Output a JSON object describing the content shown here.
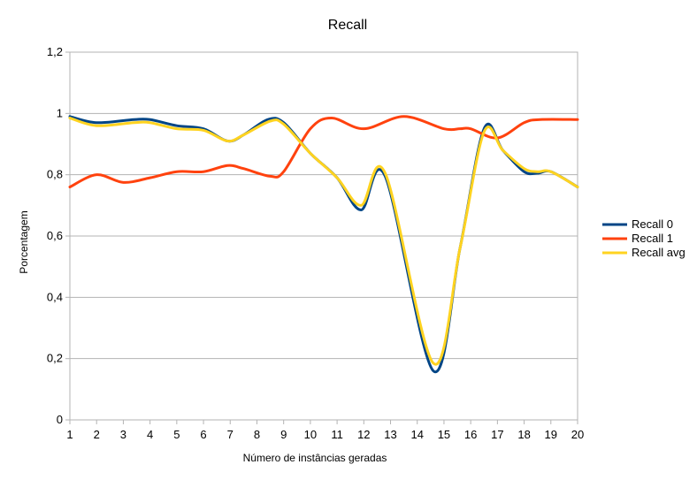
{
  "chart_data": {
    "type": "line",
    "title": "Recall",
    "xlabel": "Número de instâncias geradas",
    "ylabel": "Porcentagem",
    "x": [
      1,
      2,
      3,
      4,
      5,
      6,
      7,
      8,
      9,
      10,
      11,
      12,
      13,
      14,
      15,
      16,
      17,
      18,
      19,
      20
    ],
    "x_tick_labels": [
      "1",
      "2",
      "3",
      "4",
      "5",
      "6",
      "7",
      "8",
      "9",
      "10",
      "11",
      "12",
      "13",
      "14",
      "15",
      "16",
      "17",
      "18",
      "19",
      "20"
    ],
    "ylim": [
      0,
      1.2
    ],
    "y_ticks": [
      0,
      0.2,
      0.4,
      0.6,
      0.8,
      1.0,
      1.2
    ],
    "y_tick_labels": [
      "0",
      "0,2",
      "0,4",
      "0,6",
      "0,8",
      "1",
      "1,2"
    ],
    "grid": "horizontal",
    "legend": "right",
    "series": [
      {
        "name": "Recall 0",
        "color": "#004586",
        "points": [
          [
            1,
            0.99
          ],
          [
            2,
            0.97
          ],
          [
            3.4,
            0.98
          ],
          [
            4,
            0.98
          ],
          [
            5,
            0.96
          ],
          [
            6,
            0.95
          ],
          [
            6.9,
            0.91
          ],
          [
            7.5,
            0.93
          ],
          [
            8.4,
            0.98
          ],
          [
            9,
            0.97
          ],
          [
            10,
            0.87
          ],
          [
            11,
            0.79
          ],
          [
            11.9,
            0.685
          ],
          [
            12.8,
            0.795
          ],
          [
            14.6,
            0.16
          ],
          [
            15.6,
            0.56
          ],
          [
            16.5,
            0.95
          ],
          [
            17.2,
            0.88
          ],
          [
            18,
            0.81
          ],
          [
            18.5,
            0.805
          ],
          [
            19,
            0.81
          ],
          [
            20,
            0.76
          ]
        ]
      },
      {
        "name": "Recall 1",
        "color": "#ff420e",
        "points": [
          [
            1,
            0.76
          ],
          [
            2,
            0.8
          ],
          [
            3,
            0.775
          ],
          [
            4,
            0.79
          ],
          [
            5,
            0.81
          ],
          [
            6,
            0.81
          ],
          [
            6.9,
            0.83
          ],
          [
            7.5,
            0.82
          ],
          [
            8.5,
            0.795
          ],
          [
            9,
            0.81
          ],
          [
            10,
            0.95
          ],
          [
            10.8,
            0.985
          ],
          [
            12,
            0.95
          ],
          [
            13.5,
            0.99
          ],
          [
            15,
            0.95
          ],
          [
            15.6,
            0.95
          ],
          [
            16,
            0.95
          ],
          [
            17,
            0.92
          ],
          [
            18,
            0.97
          ],
          [
            18.6,
            0.98
          ],
          [
            20,
            0.98
          ]
        ]
      },
      {
        "name": "Recall avg",
        "color": "#ffd320",
        "points": [
          [
            1,
            0.985
          ],
          [
            2,
            0.96
          ],
          [
            3.4,
            0.97
          ],
          [
            4,
            0.97
          ],
          [
            5,
            0.95
          ],
          [
            6,
            0.945
          ],
          [
            6.9,
            0.91
          ],
          [
            7.5,
            0.93
          ],
          [
            8.5,
            0.975
          ],
          [
            9,
            0.965
          ],
          [
            10,
            0.87
          ],
          [
            11,
            0.79
          ],
          [
            11.9,
            0.7
          ],
          [
            12.8,
            0.805
          ],
          [
            14.6,
            0.185
          ],
          [
            15.6,
            0.56
          ],
          [
            16.5,
            0.94
          ],
          [
            17.2,
            0.88
          ],
          [
            18,
            0.82
          ],
          [
            18.5,
            0.81
          ],
          [
            19,
            0.81
          ],
          [
            20,
            0.76
          ]
        ]
      }
    ]
  }
}
